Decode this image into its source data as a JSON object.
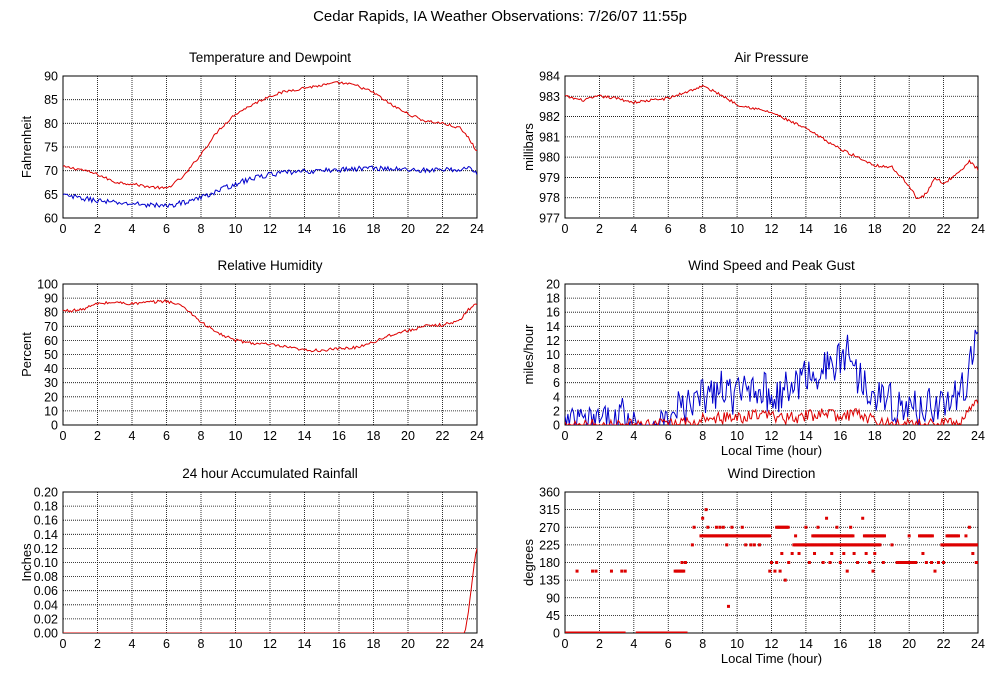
{
  "page": {
    "title": "Cedar Rapids, IA Weather Observations: 7/26/07 11:55p",
    "colors": {
      "red": "#dd0000",
      "blue": "#0000cc",
      "grid": "#000000"
    }
  },
  "chart_data": [
    {
      "id": "temp",
      "type": "line",
      "title": "Temperature and Dewpoint",
      "xlabel": "",
      "ylabel": "Fahrenheit",
      "xlim": [
        0,
        24
      ],
      "ylim": [
        60,
        90
      ],
      "x_ticks": [
        0,
        2,
        4,
        6,
        8,
        10,
        12,
        14,
        16,
        18,
        20,
        22,
        24
      ],
      "y_ticks": [
        60,
        65,
        70,
        75,
        80,
        85,
        90
      ],
      "grid": true,
      "series": [
        {
          "color": "#dd0000",
          "noise": 0.3,
          "x": [
            0,
            1,
            2,
            3,
            4,
            5,
            6,
            7,
            8,
            9,
            10,
            11,
            12,
            13,
            14,
            15,
            16,
            17,
            18,
            19,
            20,
            21,
            22,
            23,
            23.5,
            24
          ],
          "values": [
            70.8,
            70.3,
            69.2,
            67.6,
            67.2,
            66.6,
            66.2,
            68.8,
            73.5,
            78.5,
            82,
            84,
            85.8,
            86.8,
            87.5,
            88,
            88.6,
            88,
            86.5,
            84,
            82,
            80.5,
            80,
            79,
            77,
            74
          ]
        },
        {
          "color": "#0000cc",
          "noise": 0.55,
          "x": [
            0,
            1,
            2,
            3,
            4,
            5,
            6,
            7,
            8,
            9,
            10,
            11,
            12,
            13,
            14,
            15,
            16,
            17,
            18,
            19,
            20,
            21,
            22,
            23,
            23.5,
            24
          ],
          "values": [
            64.8,
            64.2,
            63.7,
            63.2,
            63,
            62.8,
            62.5,
            63.3,
            64.3,
            65.8,
            67.2,
            68.4,
            69.2,
            69.6,
            69.8,
            70,
            70.2,
            70.4,
            70.6,
            70.4,
            70.2,
            70.1,
            70.1,
            70.3,
            70.5,
            69.6
          ]
        }
      ]
    },
    {
      "id": "pressure",
      "type": "line",
      "title": "Air Pressure",
      "xlabel": "",
      "ylabel": "millibars",
      "xlim": [
        0,
        24
      ],
      "ylim": [
        977,
        984
      ],
      "x_ticks": [
        0,
        2,
        4,
        6,
        8,
        10,
        12,
        14,
        16,
        18,
        20,
        22,
        24
      ],
      "y_ticks": [
        977,
        978,
        979,
        980,
        981,
        982,
        983,
        984
      ],
      "grid": true,
      "series": [
        {
          "color": "#dd0000",
          "noise": 0.07,
          "x": [
            0,
            1,
            2,
            3,
            4,
            5,
            6,
            7,
            8,
            9,
            10,
            11,
            12,
            13,
            14,
            15,
            16,
            17,
            18,
            19,
            20,
            20.5,
            21,
            21.5,
            22,
            23,
            23.5,
            24
          ],
          "values": [
            983,
            982.8,
            983,
            982.9,
            982.7,
            982.8,
            982.9,
            983.2,
            983.5,
            983.1,
            982.6,
            982.4,
            982.2,
            981.8,
            981.4,
            980.9,
            980.4,
            980,
            979.6,
            979.5,
            978.6,
            977.9,
            978.2,
            979,
            978.7,
            979.3,
            979.8,
            979.4
          ]
        }
      ]
    },
    {
      "id": "humidity",
      "type": "line",
      "title": "Relative Humidity",
      "xlabel": "",
      "ylabel": "Percent",
      "xlim": [
        0,
        24
      ],
      "ylim": [
        0,
        100
      ],
      "x_ticks": [
        0,
        2,
        4,
        6,
        8,
        10,
        12,
        14,
        16,
        18,
        20,
        22,
        24
      ],
      "y_ticks": [
        0,
        10,
        20,
        30,
        40,
        50,
        60,
        70,
        80,
        90,
        100
      ],
      "grid": true,
      "series": [
        {
          "color": "#dd0000",
          "noise": 1.1,
          "x": [
            0,
            1,
            2,
            3,
            4,
            5,
            6,
            7,
            8,
            9,
            10,
            11,
            12,
            13,
            14,
            15,
            16,
            17,
            18,
            19,
            20,
            21,
            22,
            23,
            23.5,
            24
          ],
          "values": [
            81,
            81.5,
            86,
            87,
            86,
            87,
            88,
            84,
            73,
            65,
            60,
            58,
            57,
            55,
            53,
            53,
            54,
            55,
            59,
            64,
            67,
            70,
            71,
            74,
            82,
            86
          ]
        }
      ]
    },
    {
      "id": "wind",
      "type": "line",
      "title": "Wind Speed and Peak Gust",
      "xlabel": "Local Time (hour)",
      "ylabel": "miles/hour",
      "xlim": [
        0,
        24
      ],
      "ylim": [
        0,
        20
      ],
      "x_ticks": [
        0,
        2,
        4,
        6,
        8,
        10,
        12,
        14,
        16,
        18,
        20,
        22,
        24
      ],
      "y_ticks": [
        0,
        2,
        4,
        6,
        8,
        10,
        12,
        14,
        16,
        18,
        20
      ],
      "grid": true,
      "series": [
        {
          "color": "#0000cc",
          "noise": 2.8,
          "x": [
            0,
            0.5,
            0.8,
            1,
            1.6,
            1.8,
            2,
            3,
            3.4,
            3.7,
            4,
            6.2,
            6.5,
            7,
            8,
            9,
            10,
            11,
            12,
            13,
            14,
            15,
            16,
            16.5,
            17,
            18,
            19,
            20,
            21,
            22,
            23,
            23.5,
            24
          ],
          "values": [
            0,
            0,
            1,
            0,
            0,
            1,
            0,
            0,
            2,
            0,
            0,
            0,
            3,
            2,
            4,
            5,
            4,
            6,
            4,
            5,
            7,
            8,
            9,
            11,
            7,
            5,
            3,
            2,
            3,
            3,
            4,
            8,
            14
          ]
        },
        {
          "color": "#dd0000",
          "noise": 0.9,
          "x": [
            0,
            6.5,
            7,
            8,
            10,
            11,
            12,
            13,
            14,
            15,
            16,
            17,
            18,
            19,
            21,
            22,
            23,
            23.5,
            24
          ],
          "values": [
            0,
            0,
            0.3,
            0.8,
            1,
            1.5,
            1,
            1,
            1.3,
            1.5,
            1.2,
            1.5,
            0.6,
            0,
            0,
            0.2,
            0.8,
            2,
            3
          ]
        }
      ]
    },
    {
      "id": "rain",
      "type": "line",
      "title": "24 hour Accumulated Rainfall",
      "xlabel": "",
      "ylabel": "Inches",
      "xlim": [
        0,
        24
      ],
      "ylim": [
        0,
        0.2
      ],
      "x_ticks": [
        0,
        2,
        4,
        6,
        8,
        10,
        12,
        14,
        16,
        18,
        20,
        22,
        24
      ],
      "y_ticks": [
        "0.00",
        "0.02",
        "0.04",
        "0.06",
        "0.08",
        "0.10",
        "0.12",
        "0.14",
        "0.16",
        "0.18",
        "0.20"
      ],
      "grid": true,
      "series": [
        {
          "color": "#dd0000",
          "noise": 0,
          "x": [
            0,
            23.3,
            23.5,
            23.7,
            23.9,
            24
          ],
          "values": [
            0,
            0,
            0.03,
            0.07,
            0.11,
            0.12
          ]
        }
      ]
    },
    {
      "id": "direction",
      "type": "scatter",
      "title": "Wind Direction",
      "xlabel": "Local Time (hour)",
      "ylabel": "degrees",
      "xlim": [
        0,
        24
      ],
      "ylim": [
        0,
        360
      ],
      "x_ticks": [
        0,
        2,
        4,
        6,
        8,
        10,
        12,
        14,
        16,
        18,
        20,
        22,
        24
      ],
      "y_ticks": [
        0,
        45,
        90,
        135,
        180,
        225,
        270,
        315,
        360
      ],
      "grid": true,
      "series": [
        {
          "color": "#dd0000",
          "segments": [
            {
              "x0": 0.1,
              "x1": 3.5,
              "y": 0
            },
            {
              "x0": 4.2,
              "x1": 7.1,
              "y": 0
            },
            {
              "x0": 7.9,
              "x1": 11.9,
              "y": 248
            },
            {
              "x0": 12.3,
              "x1": 13.0,
              "y": 270
            },
            {
              "x0": 13.3,
              "x1": 18.3,
              "y": 225
            },
            {
              "x0": 14.4,
              "x1": 16.8,
              "y": 248
            },
            {
              "x0": 17.4,
              "x1": 18.6,
              "y": 248
            },
            {
              "x0": 19.3,
              "x1": 20.4,
              "y": 180
            },
            {
              "x0": 20.6,
              "x1": 21.4,
              "y": 248
            },
            {
              "x0": 21.9,
              "x1": 24.0,
              "y": 225
            },
            {
              "x0": 22.2,
              "x1": 22.9,
              "y": 248
            },
            {
              "x0": 6.4,
              "x1": 6.9,
              "y": 158
            }
          ],
          "points": [
            [
              0.7,
              158
            ],
            [
              1.6,
              158
            ],
            [
              1.8,
              158
            ],
            [
              2.7,
              158
            ],
            [
              3.3,
              158
            ],
            [
              3.5,
              158
            ],
            [
              6.8,
              180
            ],
            [
              7.0,
              180
            ],
            [
              7.4,
              225
            ],
            [
              7.5,
              270
            ],
            [
              8.0,
              293
            ],
            [
              8.2,
              315
            ],
            [
              8.3,
              270
            ],
            [
              8.8,
              270
            ],
            [
              9.0,
              270
            ],
            [
              9.2,
              270
            ],
            [
              9.4,
              225
            ],
            [
              9.5,
              68
            ],
            [
              9.7,
              270
            ],
            [
              10.0,
              248
            ],
            [
              10.3,
              270
            ],
            [
              10.5,
              225
            ],
            [
              10.8,
              225
            ],
            [
              11.0,
              225
            ],
            [
              11.3,
              225
            ],
            [
              11.9,
              158
            ],
            [
              12.0,
              180
            ],
            [
              12.2,
              158
            ],
            [
              12.3,
              180
            ],
            [
              12.5,
              158
            ],
            [
              12.6,
              203
            ],
            [
              12.8,
              135
            ],
            [
              13.0,
              180
            ],
            [
              13.2,
              203
            ],
            [
              13.4,
              248
            ],
            [
              13.6,
              203
            ],
            [
              14.0,
              270
            ],
            [
              14.2,
              180
            ],
            [
              14.5,
              203
            ],
            [
              14.7,
              270
            ],
            [
              15.0,
              180
            ],
            [
              15.2,
              293
            ],
            [
              15.4,
              180
            ],
            [
              15.5,
              203
            ],
            [
              15.8,
              270
            ],
            [
              16.0,
              180
            ],
            [
              16.2,
              203
            ],
            [
              16.4,
              158
            ],
            [
              16.6,
              270
            ],
            [
              16.8,
              203
            ],
            [
              17.0,
              180
            ],
            [
              17.3,
              293
            ],
            [
              17.5,
              203
            ],
            [
              17.7,
              180
            ],
            [
              17.9,
              158
            ],
            [
              18.0,
              203
            ],
            [
              18.5,
              180
            ],
            [
              19.0,
              225
            ],
            [
              20.0,
              248
            ],
            [
              20.8,
              203
            ],
            [
              21.0,
              180
            ],
            [
              21.3,
              180
            ],
            [
              21.5,
              158
            ],
            [
              21.7,
              180
            ],
            [
              22.0,
              180
            ],
            [
              23.3,
              248
            ],
            [
              23.5,
              270
            ],
            [
              23.9,
              180
            ],
            [
              24.0,
              180
            ],
            [
              23.7,
              203
            ]
          ]
        }
      ]
    }
  ]
}
